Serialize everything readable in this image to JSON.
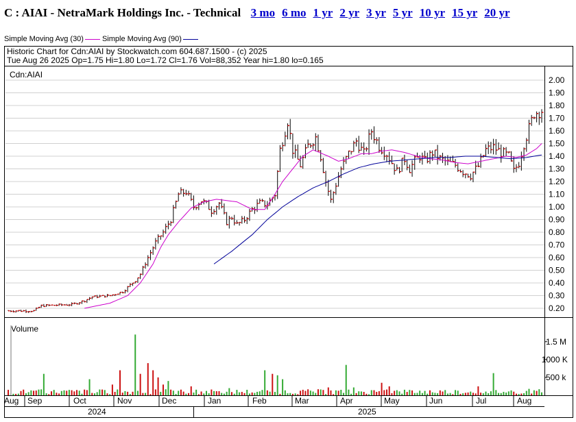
{
  "header": {
    "title": "C : AIAI - NetraMark Holdings Inc. - Technical",
    "ranges": [
      "3 mo",
      "6 mo",
      "1 yr",
      "2 yr",
      "3 yr",
      "5 yr",
      "10 yr",
      "15 yr",
      "20 yr"
    ]
  },
  "legend": {
    "sma30_label": "Simple Moving Avg (30)",
    "sma90_label": "Simple Moving Avg (90)"
  },
  "info": {
    "line1": "Historic Chart for Cdn:AIAI by Stockwatch.com 604.687.1500 - (c) 2025",
    "line2": "Tue Aug 26 2025   Op=1.75   Hi=1.80   Lo=1.72   Cl=1.76   Vol=88,352   Year hi=1.80   lo=0.165",
    "symbol": "Cdn:AIAI",
    "volume_label": "Volume"
  },
  "colors": {
    "bar": "#000000",
    "close_tick": "#cc0000",
    "sma30": "#cc00cc",
    "sma90": "#000099",
    "vol_up": "#33aa33",
    "vol_down": "#cc1111",
    "grid": "#d0d0d0",
    "link": "#0000cc"
  },
  "chart_data": {
    "type": "ohlc",
    "price_axis": {
      "ticks": [
        0.2,
        0.3,
        0.4,
        0.5,
        0.6,
        0.7,
        0.8,
        0.9,
        1.0,
        1.1,
        1.2,
        1.3,
        1.4,
        1.5,
        1.6,
        1.7,
        1.8,
        1.9,
        2.0
      ],
      "labels": [
        "0.20",
        "0.30",
        "0.40",
        "0.50",
        "0.60",
        "0.70",
        "0.80",
        "0.90",
        "1.00",
        "1.10",
        "1.20",
        "1.30",
        "1.40",
        "1.50",
        "1.60",
        "1.70",
        "1.80",
        "1.90",
        "2.00"
      ]
    },
    "volume_axis": {
      "ticks": [
        500000,
        1000000,
        1500000
      ],
      "labels": [
        "500 k",
        "1000 K",
        "1.5 M"
      ]
    },
    "months": [
      "Aug",
      "Sep",
      "Oct",
      "Nov",
      "Dec",
      "Jan",
      "Feb",
      "Mar",
      "Apr",
      "May",
      "Jun",
      "Jul",
      "Aug"
    ],
    "years": [
      "2024",
      "2025"
    ],
    "price_keypoints": [
      [
        0,
        0.18
      ],
      [
        10,
        0.18
      ],
      [
        13,
        0.22
      ],
      [
        25,
        0.23
      ],
      [
        30,
        0.26
      ],
      [
        33,
        0.29
      ],
      [
        40,
        0.3
      ],
      [
        45,
        0.33
      ],
      [
        50,
        0.42
      ],
      [
        52,
        0.47
      ],
      [
        55,
        0.6
      ],
      [
        58,
        0.72
      ],
      [
        61,
        0.8
      ],
      [
        64,
        0.9
      ],
      [
        67,
        1.1
      ],
      [
        70,
        1.12
      ],
      [
        73,
        1.0
      ],
      [
        76,
        1.05
      ],
      [
        78,
        1.02
      ],
      [
        80,
        0.97
      ],
      [
        83,
        1.03
      ],
      [
        86,
        0.88
      ],
      [
        88,
        0.92
      ],
      [
        90,
        0.86
      ],
      [
        93,
        0.9
      ],
      [
        96,
        0.98
      ],
      [
        99,
        1.03
      ],
      [
        102,
        1.02
      ],
      [
        105,
        1.1
      ],
      [
        107,
        1.45
      ],
      [
        110,
        1.68
      ],
      [
        112,
        1.45
      ],
      [
        115,
        1.33
      ],
      [
        118,
        1.48
      ],
      [
        121,
        1.55
      ],
      [
        123,
        1.4
      ],
      [
        125,
        1.2
      ],
      [
        127,
        1.05
      ],
      [
        129,
        1.18
      ],
      [
        131,
        1.3
      ],
      [
        134,
        1.42
      ],
      [
        137,
        1.52
      ],
      [
        140,
        1.42
      ],
      [
        143,
        1.6
      ],
      [
        146,
        1.48
      ],
      [
        149,
        1.42
      ],
      [
        151,
        1.35
      ],
      [
        153,
        1.28
      ],
      [
        156,
        1.38
      ],
      [
        158,
        1.3
      ],
      [
        160,
        1.36
      ],
      [
        162,
        1.4
      ],
      [
        164,
        1.36
      ],
      [
        167,
        1.43
      ],
      [
        170,
        1.38
      ],
      [
        173,
        1.35
      ],
      [
        176,
        1.33
      ],
      [
        179,
        1.28
      ],
      [
        182,
        1.25
      ],
      [
        185,
        1.32
      ],
      [
        188,
        1.45
      ],
      [
        191,
        1.47
      ],
      [
        194,
        1.43
      ],
      [
        197,
        1.4
      ],
      [
        199,
        1.28
      ],
      [
        201,
        1.35
      ],
      [
        203,
        1.5
      ],
      [
        205,
        1.62
      ],
      [
        207,
        1.74
      ],
      [
        210,
        1.76
      ]
    ],
    "sma30_keypoints": [
      [
        30,
        0.2
      ],
      [
        40,
        0.24
      ],
      [
        47,
        0.3
      ],
      [
        52,
        0.4
      ],
      [
        57,
        0.55
      ],
      [
        60,
        0.68
      ],
      [
        63,
        0.78
      ],
      [
        67,
        0.88
      ],
      [
        72,
        0.99
      ],
      [
        77,
        1.04
      ],
      [
        82,
        1.06
      ],
      [
        90,
        1.04
      ],
      [
        96,
        0.98
      ],
      [
        101,
        0.98
      ],
      [
        105,
        1.1
      ],
      [
        108,
        1.2
      ],
      [
        112,
        1.3
      ],
      [
        116,
        1.4
      ],
      [
        120,
        1.45
      ],
      [
        126,
        1.4
      ],
      [
        130,
        1.36
      ],
      [
        134,
        1.38
      ],
      [
        139,
        1.42
      ],
      [
        143,
        1.42
      ],
      [
        147,
        1.44
      ],
      [
        151,
        1.45
      ],
      [
        156,
        1.43
      ],
      [
        161,
        1.4
      ],
      [
        166,
        1.38
      ],
      [
        171,
        1.37
      ],
      [
        176,
        1.35
      ],
      [
        181,
        1.34
      ],
      [
        186,
        1.36
      ],
      [
        191,
        1.38
      ],
      [
        196,
        1.4
      ],
      [
        200,
        1.39
      ],
      [
        204,
        1.41
      ],
      [
        208,
        1.46
      ],
      [
        210,
        1.5
      ]
    ],
    "sma90_keypoints": [
      [
        81,
        0.55
      ],
      [
        88,
        0.65
      ],
      [
        96,
        0.78
      ],
      [
        102,
        0.9
      ],
      [
        108,
        1.0
      ],
      [
        114,
        1.08
      ],
      [
        120,
        1.15
      ],
      [
        126,
        1.2
      ],
      [
        132,
        1.26
      ],
      [
        138,
        1.31
      ],
      [
        144,
        1.34
      ],
      [
        150,
        1.36
      ],
      [
        156,
        1.37
      ],
      [
        162,
        1.38
      ],
      [
        168,
        1.39
      ],
      [
        174,
        1.39
      ],
      [
        180,
        1.4
      ],
      [
        186,
        1.4
      ],
      [
        192,
        1.39
      ],
      [
        198,
        1.38
      ],
      [
        204,
        1.39
      ],
      [
        210,
        1.41
      ]
    ],
    "volume_spikes": [
      [
        14,
        600000
      ],
      [
        32,
        450000
      ],
      [
        41,
        300000
      ],
      [
        44,
        700000
      ],
      [
        50,
        1700000
      ],
      [
        52,
        600000
      ],
      [
        55,
        900000
      ],
      [
        57,
        700000
      ],
      [
        59,
        500000
      ],
      [
        61,
        300000
      ],
      [
        63,
        400000
      ],
      [
        72,
        250000
      ],
      [
        87,
        200000
      ],
      [
        101,
        700000
      ],
      [
        104,
        600000
      ],
      [
        106,
        560000
      ],
      [
        108,
        450000
      ],
      [
        126,
        220000
      ],
      [
        133,
        850000
      ],
      [
        136,
        220000
      ],
      [
        147,
        350000
      ],
      [
        150,
        250000
      ],
      [
        185,
        250000
      ],
      [
        191,
        620000
      ],
      [
        205,
        180000
      ],
      [
        209,
        170000
      ]
    ]
  }
}
